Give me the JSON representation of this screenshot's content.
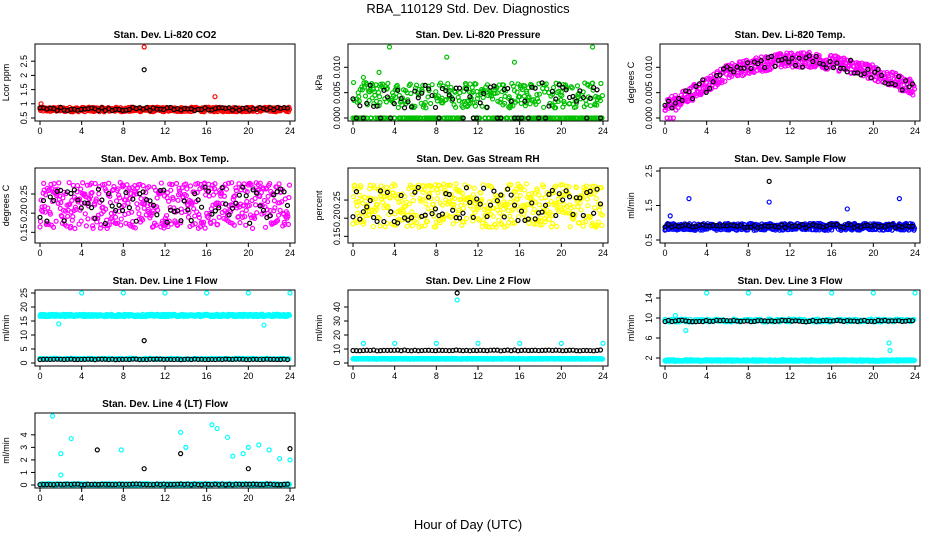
{
  "figure": {
    "title": "RBA_110129  Std. Dev. Diagnostics",
    "xlabel": "Hour of Day (UTC)"
  },
  "chart_data": [
    {
      "type": "scatter",
      "title": "Stan. Dev. Li-820 CO2",
      "ylabel": "Lcor ppm",
      "xlim": [
        0,
        24
      ],
      "ylim": [
        0.5,
        3.0
      ],
      "xticks": [
        0,
        4,
        8,
        12,
        16,
        20,
        24
      ],
      "yticks": [
        0.5,
        1.0,
        1.5,
        2.0,
        2.5
      ],
      "series": [
        {
          "color": "#ff0000",
          "base": 0.8,
          "spread": 0.08,
          "every": 0.05,
          "outliers": [
            [
              10.0,
              3.0
            ],
            [
              16.8,
              1.25
            ],
            [
              0.1,
              1.0
            ]
          ]
        },
        {
          "color": "#000000",
          "base": 0.82,
          "spread": 0.06,
          "every": 0.33,
          "outliers": [
            [
              10.0,
              2.2
            ]
          ]
        }
      ]
    },
    {
      "type": "scatter",
      "title": "Stan. Dev. Li-820 Pressure",
      "ylabel": "kPa",
      "xlim": [
        0,
        24
      ],
      "ylim": [
        0,
        0.014
      ],
      "xticks": [
        0,
        4,
        8,
        12,
        16,
        20,
        24
      ],
      "yticks": [
        0.0,
        0.005,
        0.01
      ],
      "series": [
        {
          "color": "#00c000",
          "pattern": "pressure",
          "every": 0.05,
          "outliers": [
            [
              1.0,
              0.008
            ],
            [
              2.5,
              0.009
            ],
            [
              3.5,
              0.014
            ],
            [
              9.0,
              0.012
            ],
            [
              15.5,
              0.011
            ],
            [
              23.0,
              0.014
            ]
          ]
        },
        {
          "color": "#000000",
          "pattern": "pressure",
          "every": 0.33,
          "outliers": []
        }
      ]
    },
    {
      "type": "scatter",
      "title": "Stan. Dev. Li-820 Temp.",
      "ylabel": "degrees C",
      "xlim": [
        0,
        24
      ],
      "ylim": [
        0,
        0.014
      ],
      "xticks": [
        0,
        4,
        8,
        12,
        16,
        20,
        24
      ],
      "yticks": [
        0.0,
        0.005,
        0.01
      ],
      "series": [
        {
          "color": "#ff00ff",
          "pattern": "temp",
          "every": 0.05,
          "outliers": [
            [
              0.2,
              0.0
            ],
            [
              0.5,
              0.0
            ],
            [
              0.8,
              0.0
            ]
          ]
        },
        {
          "color": "#000000",
          "pattern": "temp",
          "every": 0.33,
          "outliers": []
        }
      ]
    },
    {
      "type": "scatter",
      "title": "Stan. Dev. Amb. Box Temp.",
      "ylabel": "degrees C",
      "xlim": [
        0,
        24
      ],
      "ylim": [
        0.13,
        0.31
      ],
      "xticks": [
        0,
        4,
        8,
        12,
        16,
        20,
        24
      ],
      "yticks": [
        0.15,
        0.2,
        0.25
      ],
      "series": [
        {
          "color": "#ff00ff",
          "base": 0.22,
          "spread": 0.06,
          "every": 0.05,
          "outliers": []
        },
        {
          "color": "#000000",
          "base": 0.22,
          "spread": 0.05,
          "every": 0.33,
          "outliers": []
        }
      ]
    },
    {
      "type": "scatter",
      "title": "Stan. Dev. Gas Stream RH",
      "ylabel": "percent",
      "xlim": [
        0,
        24
      ],
      "ylim": [
        0.14,
        0.33
      ],
      "xticks": [
        0,
        4,
        8,
        12,
        16,
        20,
        24
      ],
      "yticks": [
        0.15,
        0.2,
        0.25
      ],
      "series": [
        {
          "color": "#ffff00",
          "base": 0.235,
          "spread": 0.06,
          "every": 0.05,
          "outliers": []
        },
        {
          "color": "#000000",
          "base": 0.235,
          "spread": 0.05,
          "every": 0.33,
          "outliers": []
        }
      ]
    },
    {
      "type": "scatter",
      "title": "Stan. Dev. Sample Flow",
      "ylabel": "ml/min",
      "xlim": [
        0,
        24
      ],
      "ylim": [
        0.5,
        2.5
      ],
      "xticks": [
        0,
        4,
        8,
        12,
        16,
        20,
        24
      ],
      "yticks": [
        0.5,
        1.5,
        2.5
      ],
      "series": [
        {
          "color": "#0000ff",
          "base": 0.88,
          "spread": 0.1,
          "every": 0.05,
          "outliers": [
            [
              2.3,
              1.7
            ],
            [
              0.5,
              1.2
            ],
            [
              10.0,
              1.6
            ],
            [
              17.5,
              1.4
            ],
            [
              22.5,
              1.7
            ]
          ]
        },
        {
          "color": "#000000",
          "base": 0.9,
          "spread": 0.05,
          "every": 0.33,
          "outliers": [
            [
              10.0,
              2.2
            ]
          ]
        }
      ]
    },
    {
      "type": "scatter",
      "title": "Stan. Dev. Line 1 Flow",
      "ylabel": "ml/min",
      "xlim": [
        0,
        24
      ],
      "ylim": [
        0,
        25
      ],
      "xticks": [
        0,
        4,
        8,
        12,
        16,
        20,
        24
      ],
      "yticks": [
        0,
        5,
        10,
        15,
        20,
        25
      ],
      "series": [
        {
          "color": "#00ffff",
          "base": 17.0,
          "spread": 0.4,
          "every": 0.05,
          "outliers": [
            [
              1.8,
              14.0
            ],
            [
              4.0,
              25.0
            ],
            [
              8.0,
              25.0
            ],
            [
              12.0,
              25.0
            ],
            [
              16.0,
              25.0
            ],
            [
              20.0,
              25.0
            ],
            [
              21.5,
              13.5
            ],
            [
              24.0,
              25.0
            ]
          ]
        },
        {
          "color": "#00ffff",
          "base": 1.5,
          "spread": 0.2,
          "every": 0.1,
          "outliers": []
        },
        {
          "color": "#000000",
          "base": 1.3,
          "spread": 0.1,
          "every": 0.33,
          "outliers": [
            [
              10.0,
              8.0
            ]
          ]
        }
      ]
    },
    {
      "type": "scatter",
      "title": "Stan. Dev. Line 2 Flow",
      "ylabel": "ml/min",
      "xlim": [
        0,
        24
      ],
      "ylim": [
        0,
        50
      ],
      "xticks": [
        0,
        4,
        8,
        12,
        16,
        20,
        24
      ],
      "yticks": [
        0,
        10,
        20,
        30,
        40
      ],
      "series": [
        {
          "color": "#00ffff",
          "base": 3.0,
          "spread": 0.3,
          "every": 0.05,
          "outliers": [
            [
              1.0,
              14.0
            ],
            [
              4.0,
              14.0
            ],
            [
              8.0,
              14.0
            ],
            [
              10.0,
              45.0
            ],
            [
              12.0,
              14.0
            ],
            [
              16.0,
              14.0
            ],
            [
              20.0,
              14.0
            ],
            [
              24.0,
              14.0
            ]
          ]
        },
        {
          "color": "#000000",
          "base": 9.0,
          "spread": 0.3,
          "every": 0.33,
          "outliers": [
            [
              10.0,
              50.0
            ]
          ]
        }
      ]
    },
    {
      "type": "scatter",
      "title": "Stan. Dev. Line 3 Flow",
      "ylabel": "ml/min",
      "xlim": [
        0,
        24
      ],
      "ylim": [
        1,
        15
      ],
      "xticks": [
        0,
        4,
        8,
        12,
        16,
        20,
        24
      ],
      "yticks": [
        2,
        6,
        10,
        14
      ],
      "series": [
        {
          "color": "#00ffff",
          "base": 9.5,
          "spread": 0.3,
          "every": 0.1,
          "outliers": [
            [
              1.0,
              10.5
            ],
            [
              2.0,
              7.5
            ],
            [
              4.0,
              15.0
            ],
            [
              8.0,
              15.0
            ],
            [
              12.0,
              15.0
            ],
            [
              16.0,
              15.0
            ],
            [
              20.0,
              15.0
            ],
            [
              21.5,
              5.0
            ],
            [
              21.6,
              3.5
            ],
            [
              24.0,
              15.0
            ]
          ]
        },
        {
          "color": "#00ffff",
          "base": 1.5,
          "spread": 0.15,
          "every": 0.05,
          "outliers": []
        },
        {
          "color": "#000000",
          "base": 9.4,
          "spread": 0.15,
          "every": 0.33,
          "outliers": []
        }
      ]
    },
    {
      "type": "scatter",
      "title": "Stan. Dev. Line 4 (LT) Flow",
      "ylabel": "ml/min",
      "xlim": [
        0,
        24
      ],
      "ylim": [
        0,
        5.5
      ],
      "xticks": [
        0,
        4,
        8,
        12,
        16,
        20,
        24
      ],
      "yticks": [
        0,
        1,
        2,
        3,
        4
      ],
      "series": [
        {
          "color": "#00ffff",
          "base": 0.05,
          "spread": 0.05,
          "every": 0.05,
          "outliers": [
            [
              1.2,
              5.5
            ],
            [
              2.0,
              2.5
            ],
            [
              3.0,
              3.7
            ],
            [
              7.8,
              2.8
            ],
            [
              13.5,
              4.2
            ],
            [
              14.0,
              3.0
            ],
            [
              16.5,
              4.8
            ],
            [
              17.0,
              4.5
            ],
            [
              18.0,
              3.8
            ],
            [
              18.5,
              2.3
            ],
            [
              19.5,
              2.5
            ],
            [
              20.0,
              3.0
            ],
            [
              21.0,
              3.2
            ],
            [
              22.0,
              2.8
            ],
            [
              23.0,
              2.1
            ],
            [
              24.0,
              2.0
            ],
            [
              2.0,
              0.8
            ]
          ]
        },
        {
          "color": "#000000",
          "base": 0.05,
          "spread": 0.03,
          "every": 0.33,
          "outliers": [
            [
              5.5,
              2.8
            ],
            [
              10.0,
              1.3
            ],
            [
              13.5,
              2.5
            ],
            [
              20.0,
              1.3
            ],
            [
              24.0,
              2.9
            ]
          ]
        }
      ]
    }
  ]
}
